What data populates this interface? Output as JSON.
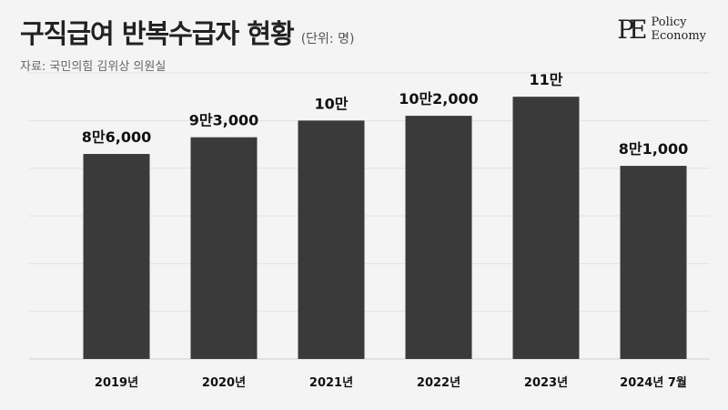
{
  "header": {
    "title": "구직급여 반복수급자 현황",
    "unit": "(단위: 명)",
    "source": "자료: 국민의힘 김위상 의원실"
  },
  "logo": {
    "mark": "PE",
    "line1": "Policy",
    "line2": "Economy"
  },
  "colors": {
    "bar": "#3b3a3b",
    "background": "#f4f4f4"
  },
  "chart_data": {
    "type": "bar",
    "title": "구직급여 반복수급자 현황",
    "unit": "(단위: 명)",
    "categories": [
      "2019년",
      "2020년",
      "2021년",
      "2022년",
      "2023년",
      "2024년 7월"
    ],
    "values": [
      86000,
      93000,
      100000,
      102000,
      110000,
      81000
    ],
    "data_labels": [
      "8만6,000",
      "9만3,000",
      "10만",
      "10만2,000",
      "11만",
      "8만1,000"
    ],
    "ylim": [
      0,
      120000
    ],
    "grid": true
  }
}
